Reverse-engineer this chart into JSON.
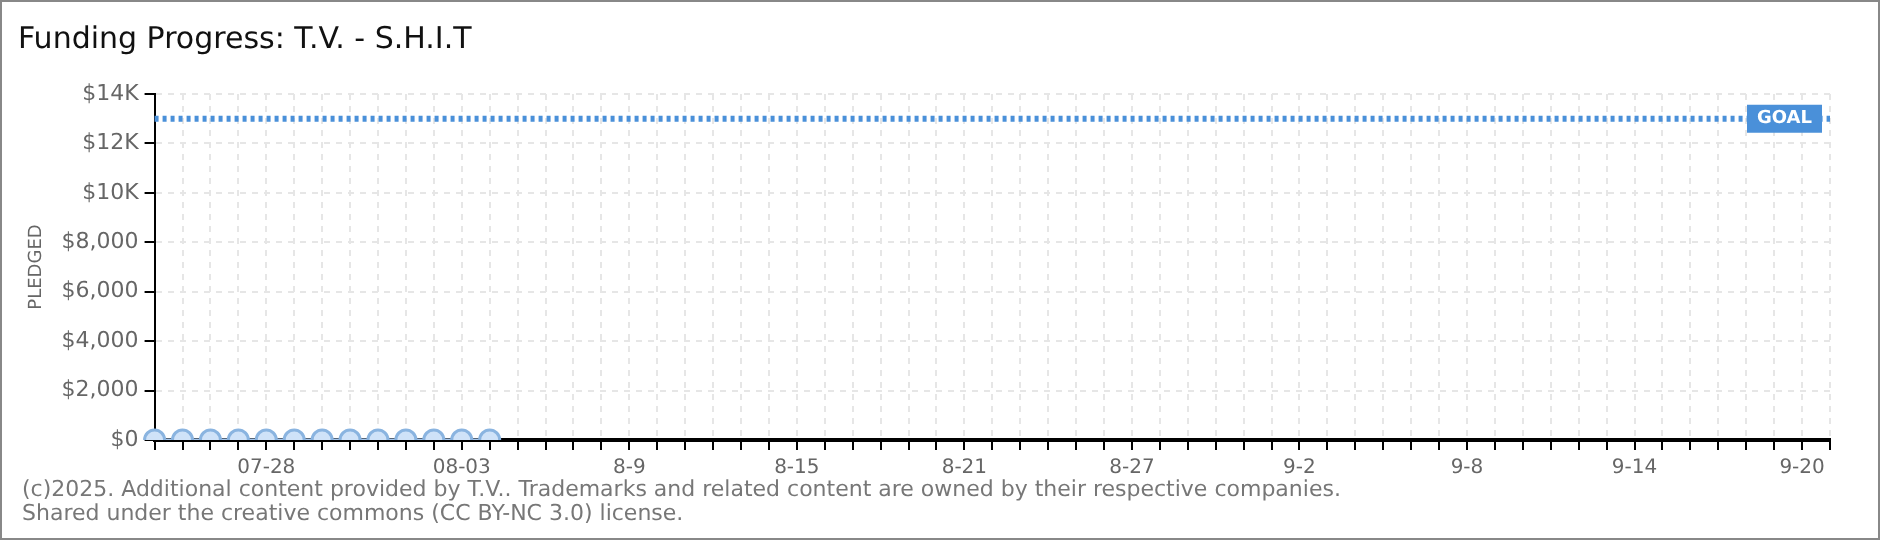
{
  "chart_data": {
    "type": "line",
    "title": "Funding Progress: T.V. - S.H.I.T",
    "ylabel": "PLEDGED",
    "categories": [
      null,
      null,
      null,
      null,
      "07-28",
      null,
      null,
      null,
      null,
      null,
      null,
      "08-03",
      null,
      null,
      null,
      null,
      null,
      "8-9",
      null,
      null,
      null,
      null,
      null,
      "8-15",
      null,
      null,
      null,
      null,
      null,
      "8-21",
      null,
      null,
      null,
      null,
      null,
      "8-27",
      null,
      null,
      null,
      null,
      null,
      "9-2",
      null,
      null,
      null,
      null,
      null,
      "9-8",
      null,
      null,
      null,
      null,
      null,
      "9-14",
      null,
      null,
      null,
      null,
      null,
      "9-20",
      null
    ],
    "series": [
      {
        "color": "#a9c9ee",
        "values": [
          0,
          0,
          0,
          0,
          0,
          0,
          0,
          0,
          0,
          0,
          0,
          0,
          0,
          null,
          null,
          null,
          null,
          null,
          null,
          null,
          null,
          null,
          null,
          null,
          null,
          null,
          null,
          null,
          null,
          null,
          null,
          null,
          null,
          null,
          null,
          null,
          null,
          null,
          null,
          null,
          null,
          null,
          null,
          null,
          null,
          null,
          null,
          null,
          null,
          null,
          null,
          null,
          null,
          null,
          null,
          null,
          null,
          null,
          null,
          null,
          null
        ]
      }
    ],
    "ylim": [
      0,
      14000
    ],
    "yticks": [
      {
        "value": 0,
        "label": "$0"
      },
      {
        "value": 2000,
        "label": "$2,000"
      },
      {
        "value": 4000,
        "label": "$4,000"
      },
      {
        "value": 6000,
        "label": "$6,000"
      },
      {
        "value": 8000,
        "label": "$8,000"
      },
      {
        "value": 10000,
        "label": "$10K"
      },
      {
        "value": 12000,
        "label": "$12K"
      },
      {
        "value": 14000,
        "label": "$14K"
      }
    ],
    "ref_lines": [
      {
        "axis": "y",
        "value": 13000,
        "label": "GOAL",
        "color": "#4a90d9",
        "line_style": "dotted"
      }
    ],
    "annotations": [
      "(c)2025. Additional content provided by T.V.. Trademarks and related content are owned by their respective companies.",
      "Shared under the creative commons (CC BY-NC 3.0) license."
    ],
    "grid": true,
    "legend": false,
    "marker": "circle",
    "line_style": "solid"
  }
}
